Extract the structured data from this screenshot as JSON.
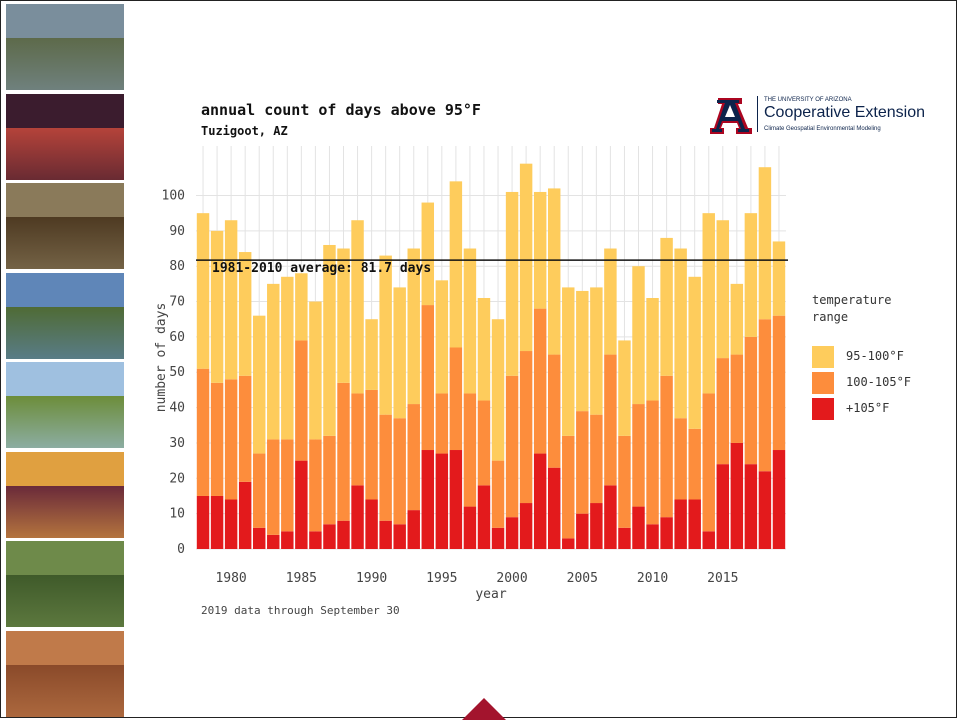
{
  "slide": {
    "photos": [
      {
        "name": "vineyard-frost-photo",
        "sky": "#7a8e9c",
        "ground": "#5d6a4a"
      },
      {
        "name": "frost-candles-photo",
        "sky": "#3b1c2e",
        "ground": "#b5433a"
      },
      {
        "name": "dried-vine-photo",
        "sky": "#8a7a5a",
        "ground": "#4e3a22"
      },
      {
        "name": "vineyard-rows-blue-sky-photo",
        "sky": "#5f86b8",
        "ground": "#4f6b35"
      },
      {
        "name": "vineyard-clouds-photo",
        "sky": "#9fc0e0",
        "ground": "#6c8d3a"
      },
      {
        "name": "sunset-grapes-photo",
        "sky": "#e0a040",
        "ground": "#6a2a3a"
      },
      {
        "name": "grape-harvest-photo",
        "sky": "#6e8a4a",
        "ground": "#3f5a2a"
      },
      {
        "name": "autumn-vineyard-photo",
        "sky": "#c07a4a",
        "ground": "#8a4a2a"
      }
    ],
    "accent_color": "#a3142d"
  },
  "logo": {
    "letter": "A",
    "small_text": "THE UNIVERSITY OF ARIZONA",
    "big_text": "Cooperative Extension",
    "sub_text": "Climate Geospatial Environmental Modeling"
  },
  "chart_data": {
    "type": "bar",
    "stacked": true,
    "title": "annual count of days above 95°F",
    "subtitle": "Tuzigoot, AZ",
    "xlabel": "year",
    "ylabel": "number of days",
    "x": [
      1978,
      1979,
      1980,
      1981,
      1982,
      1983,
      1984,
      1985,
      1986,
      1987,
      1988,
      1989,
      1990,
      1991,
      1992,
      1993,
      1994,
      1995,
      1996,
      1997,
      1998,
      1999,
      2000,
      2001,
      2002,
      2003,
      2004,
      2005,
      2006,
      2007,
      2008,
      2009,
      2010,
      2011,
      2012,
      2013,
      2014,
      2015,
      2016,
      2017,
      2018,
      2019
    ],
    "xticks": [
      1980,
      1985,
      1990,
      1995,
      2000,
      2005,
      2010,
      2015
    ],
    "yticks": [
      0,
      10,
      20,
      30,
      40,
      50,
      60,
      70,
      80,
      90,
      100
    ],
    "ylim": [
      0,
      114
    ],
    "grid": true,
    "legend_title": "temperature range",
    "legend_position": "right",
    "series": [
      {
        "name": "+105°F",
        "color": "#e31a1c",
        "values": [
          15,
          15,
          14,
          19,
          6,
          4,
          5,
          25,
          5,
          7,
          8,
          18,
          14,
          8,
          7,
          11,
          28,
          27,
          28,
          12,
          18,
          6,
          9,
          13,
          27,
          23,
          3,
          10,
          13,
          18,
          6,
          12,
          7,
          9,
          14,
          14,
          5,
          24,
          30,
          24,
          22,
          28
        ]
      },
      {
        "name": "100-105°F",
        "color": "#fd8d3c",
        "values": [
          36,
          32,
          34,
          30,
          21,
          27,
          26,
          34,
          26,
          25,
          39,
          26,
          31,
          30,
          30,
          30,
          41,
          17,
          29,
          32,
          24,
          19,
          40,
          43,
          41,
          32,
          29,
          29,
          25,
          37,
          26,
          29,
          35,
          40,
          23,
          20,
          39,
          30,
          25,
          36,
          43,
          38
        ]
      },
      {
        "name": "95-100°F",
        "color": "#fecc5c",
        "values": [
          44,
          43,
          45,
          35,
          39,
          44,
          46,
          19,
          39,
          54,
          38,
          49,
          20,
          45,
          37,
          44,
          29,
          32,
          47,
          41,
          29,
          40,
          52,
          53,
          33,
          47,
          42,
          34,
          36,
          30,
          27,
          39,
          29,
          39,
          48,
          43,
          51,
          39,
          20,
          35,
          43,
          21
        ]
      }
    ],
    "reference_line": {
      "value": 81.7,
      "label": "1981-2010 average: 81.7 days"
    },
    "note": "2019 data through September 30"
  }
}
